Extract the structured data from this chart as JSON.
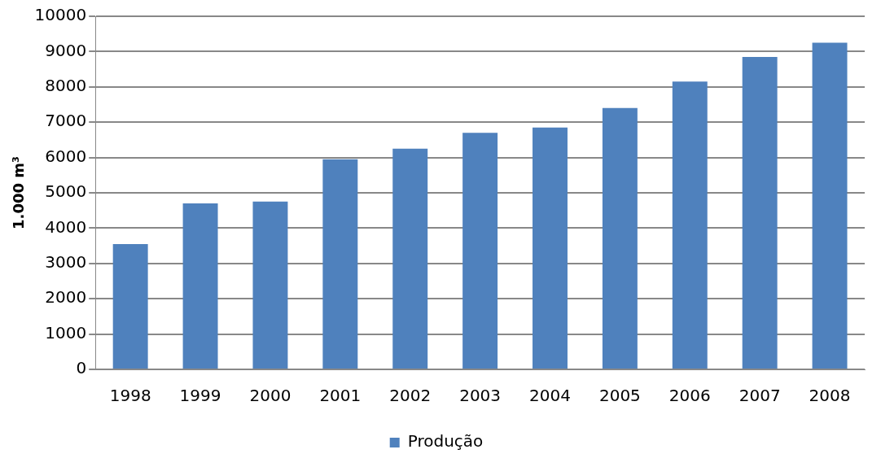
{
  "chart_data": {
    "type": "bar",
    "ylabel": "1.000 m³",
    "categories": [
      "1998",
      "1999",
      "2000",
      "2001",
      "2002",
      "2003",
      "2004",
      "2005",
      "2006",
      "2007",
      "2008"
    ],
    "series": [
      {
        "name": "Produção",
        "color": "#4f81bd",
        "values": [
          3550,
          4700,
          4750,
          5950,
          6250,
          6700,
          6850,
          7400,
          8150,
          8850,
          9250
        ]
      }
    ],
    "ylim": [
      0,
      10000
    ],
    "yticks": [
      0,
      1000,
      2000,
      3000,
      4000,
      5000,
      6000,
      7000,
      8000,
      9000,
      10000
    ],
    "grid": "y",
    "legend": "bottom"
  }
}
